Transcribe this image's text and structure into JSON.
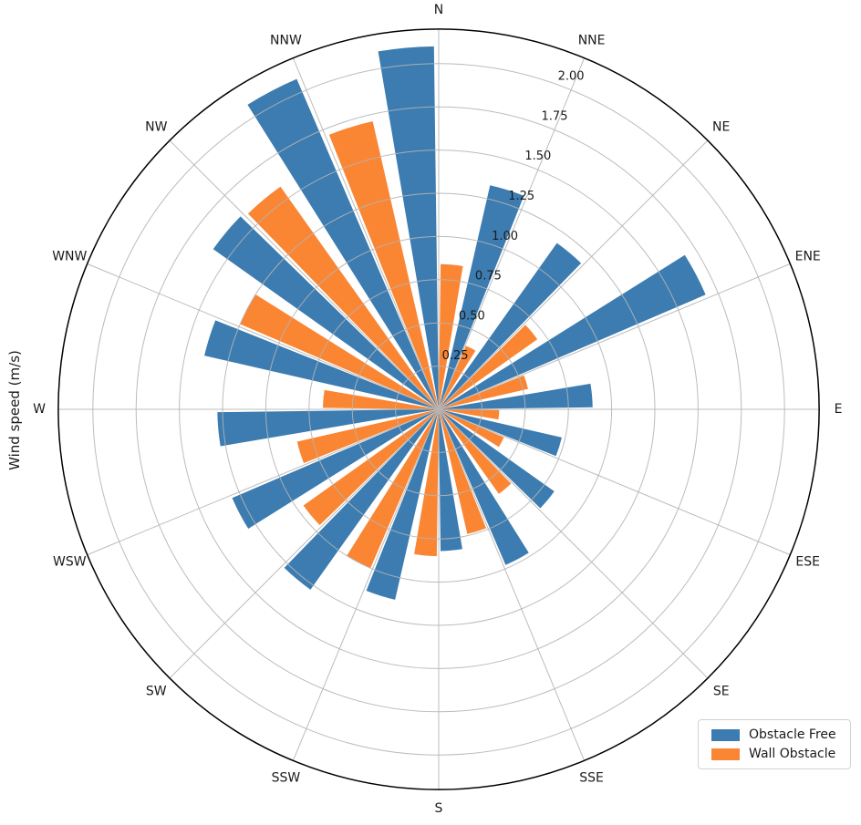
{
  "figure": {
    "background": "#ffffff"
  },
  "chart_data": {
    "type": "bar",
    "projection": "polar-windrose",
    "title": "",
    "ylabel": "Wind speed (m/s)",
    "categories": [
      "N",
      "NNE",
      "NE",
      "ENE",
      "E",
      "ESE",
      "SE",
      "SSE",
      "S",
      "SSW",
      "SW",
      "WSW",
      "W",
      "WNW",
      "NW",
      "NNW"
    ],
    "series": [
      {
        "name": "Obstacle Free",
        "color": "#3c7cb0",
        "values": [
          2.1,
          1.33,
          1.18,
          1.68,
          0.89,
          0.73,
          0.82,
          0.98,
          0.82,
          1.13,
          1.28,
          1.3,
          1.28,
          1.39,
          1.6,
          2.08
        ]
      },
      {
        "name": "Wall Obstacle",
        "color": "#fa8532",
        "values": [
          0.84,
          0.4,
          0.7,
          0.53,
          0.35,
          0.41,
          0.6,
          0.74,
          0.85,
          1.0,
          0.96,
          0.84,
          0.67,
          1.25,
          1.58,
          1.71
        ]
      }
    ],
    "r_tick_values": [
      0.25,
      0.5,
      0.75,
      1.0,
      1.25,
      1.5,
      1.75,
      2.0
    ],
    "r_tick_labels": [
      "0.25",
      "0.50",
      "0.75",
      "1.00",
      "1.25",
      "1.50",
      "1.75",
      "2.00"
    ],
    "r_max": 2.2,
    "r_label_angle_deg": 22.5,
    "theta_zero": "N",
    "theta_direction": "clockwise",
    "grid": true,
    "grid_color": "#b5b5b5",
    "outline_color": "#000000",
    "text_color": "#1a1a1a",
    "legend": {
      "position": "lower-right"
    }
  }
}
